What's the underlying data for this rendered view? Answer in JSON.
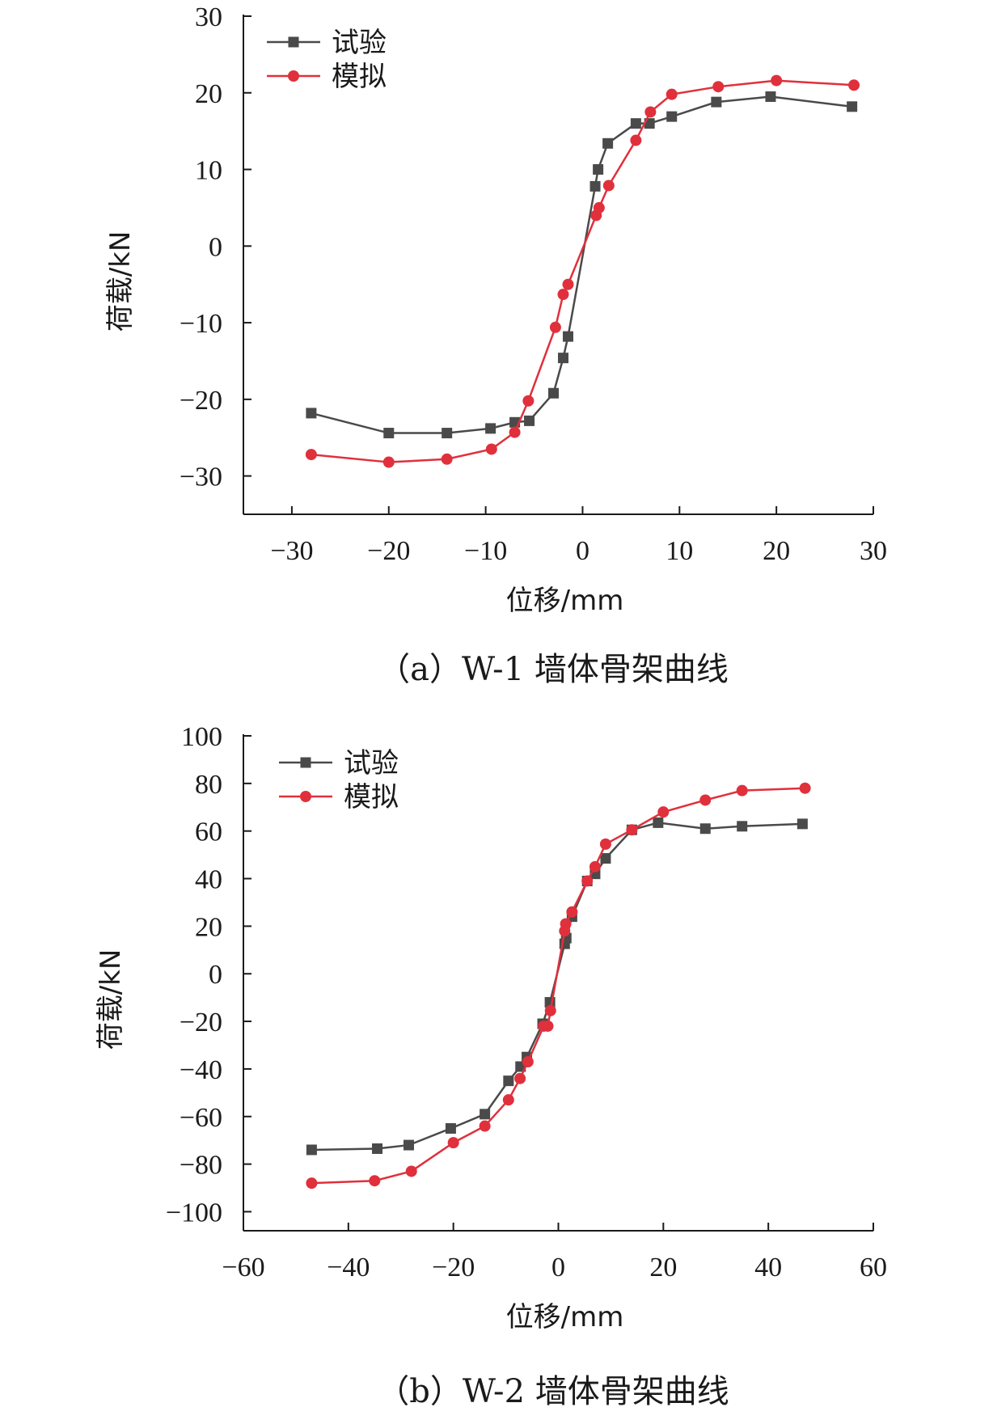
{
  "colors": {
    "test": "#4a4a4a",
    "sim": "#e0303c",
    "axis": "#1a1a1a"
  },
  "chart_data": [
    {
      "type": "line",
      "caption": "（a）W-1 墙体骨架曲线",
      "xlabel": "位移/mm",
      "ylabel": "荷载/kN",
      "xlim": [
        -35,
        30
      ],
      "ylim": [
        -35,
        30
      ],
      "xticks": [
        -30,
        -20,
        -10,
        0,
        10,
        20,
        30
      ],
      "yticks": [
        -30,
        -20,
        -10,
        0,
        10,
        20,
        30
      ],
      "xtick_labels": [
        "−30",
        "−20",
        "−10",
        "0",
        "10",
        "20",
        "30"
      ],
      "ytick_labels": [
        "−30",
        "−20",
        "−10",
        "0",
        "10",
        "20",
        "30"
      ],
      "legend_position": "top-left",
      "series": [
        {
          "name": "试验",
          "marker": "square",
          "x": [
            -28,
            -20,
            -14,
            -9.5,
            -7,
            -5.5,
            -3,
            -2,
            -1.5,
            1.3,
            1.6,
            2.6,
            5.5,
            6.9,
            9.2,
            13.8,
            19.4,
            27.8
          ],
          "y": [
            -21.8,
            -24.4,
            -24.4,
            -23.8,
            -23.0,
            -22.8,
            -19.2,
            -14.6,
            -11.8,
            7.8,
            10.0,
            13.4,
            16.0,
            16.0,
            16.9,
            18.8,
            19.5,
            18.2
          ]
        },
        {
          "name": "模拟",
          "marker": "circle",
          "x": [
            -28,
            -20,
            -14,
            -9.4,
            -7,
            -5.6,
            -2.8,
            -2,
            -1.5,
            1.4,
            1.7,
            2.7,
            5.5,
            7.0,
            9.2,
            14.0,
            20.0,
            28.0
          ],
          "y": [
            -27.2,
            -28.2,
            -27.8,
            -26.5,
            -24.3,
            -20.2,
            -10.6,
            -6.3,
            -5.0,
            4.0,
            5.0,
            7.9,
            13.8,
            17.5,
            19.8,
            20.8,
            21.6,
            21.0
          ]
        }
      ]
    },
    {
      "type": "line",
      "caption": "（b）W-2 墙体骨架曲线",
      "xlabel": "位移/mm",
      "ylabel": "荷载/kN",
      "xlim": [
        -60,
        60
      ],
      "ylim": [
        -108,
        100
      ],
      "xticks": [
        -60,
        -40,
        -20,
        0,
        20,
        40,
        60
      ],
      "yticks": [
        -100,
        -80,
        -60,
        -40,
        -20,
        0,
        20,
        40,
        60,
        80,
        100
      ],
      "xtick_labels": [
        "−60",
        "−40",
        "−20",
        "0",
        "20",
        "40",
        "60"
      ],
      "ytick_labels": [
        "−100",
        "−80",
        "−60",
        "−40",
        "−20",
        "0",
        "20",
        "40",
        "60",
        "80",
        "100"
      ],
      "legend_position": "top-left",
      "series": [
        {
          "name": "试验",
          "marker": "square",
          "x": [
            -47,
            -34.5,
            -28.5,
            -20.5,
            -14,
            -9.5,
            -7.2,
            -6,
            -3,
            -1.6,
            1.2,
            1.5,
            2.6,
            5.5,
            7,
            9,
            14,
            19,
            28,
            35,
            46.5
          ],
          "y": [
            -74,
            -73.5,
            -72,
            -65,
            -59,
            -45,
            -39,
            -35,
            -21,
            -12,
            12.6,
            15,
            24,
            39,
            42,
            48.5,
            60.5,
            63.5,
            61,
            62,
            63
          ]
        },
        {
          "name": "模拟",
          "marker": "circle",
          "x": [
            -47,
            -35,
            -28,
            -20,
            -14,
            -9.5,
            -7.3,
            -5.8,
            -2.8,
            -2,
            -1.5,
            1.2,
            1.4,
            2.6,
            5.5,
            7,
            9,
            14,
            20,
            28,
            35,
            47
          ],
          "y": [
            -88,
            -87,
            -83,
            -71,
            -64,
            -53,
            -44,
            -37,
            -22,
            -22,
            -15.5,
            18,
            21,
            26,
            39,
            45,
            54.5,
            60.5,
            68,
            73,
            77,
            78
          ]
        }
      ]
    }
  ]
}
